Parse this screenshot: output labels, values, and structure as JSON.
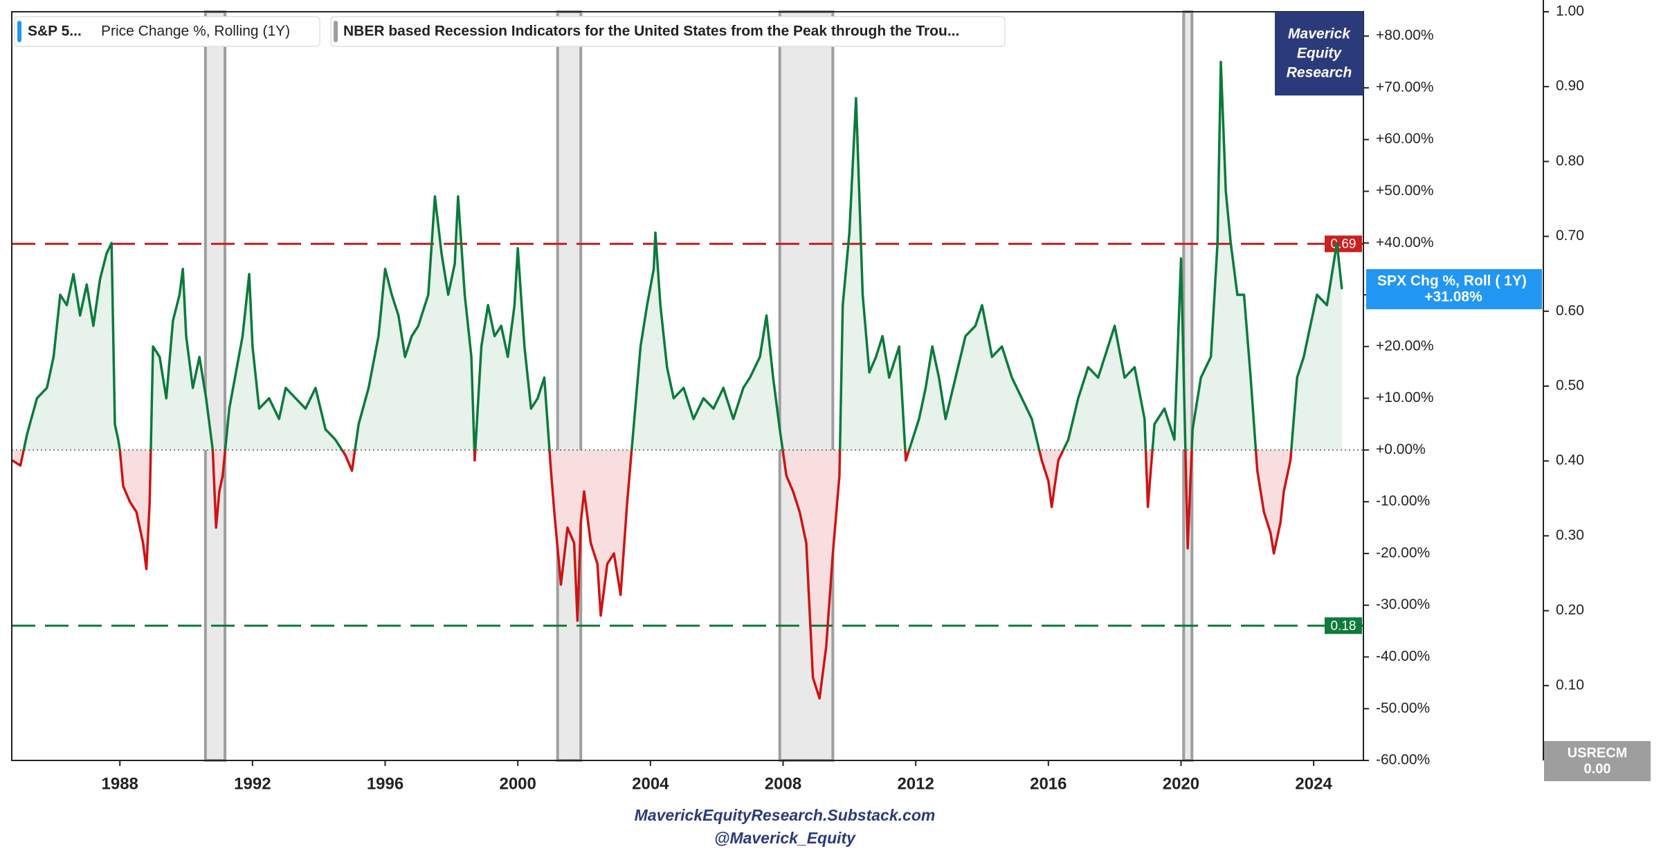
{
  "chart_data": {
    "type": "line",
    "xlim": [
      1984.74,
      2025.5
    ],
    "xticks": [
      1988,
      1992,
      1996,
      2000,
      2004,
      2008,
      2012,
      2016,
      2020,
      2024
    ],
    "ylim": [
      -60,
      84.7
    ],
    "yticks": [
      {
        "value": -60,
        "label": "-60.00%"
      },
      {
        "value": -50,
        "label": "-50.00%"
      },
      {
        "value": -40,
        "label": "-40.00%"
      },
      {
        "value": -30,
        "label": "-30.00%"
      },
      {
        "value": -20,
        "label": "-20.00%"
      },
      {
        "value": -10,
        "label": "-10.00%"
      },
      {
        "value": 0,
        "label": "+0.00%"
      },
      {
        "value": 10,
        "label": "+10.00%"
      },
      {
        "value": 20,
        "label": "+20.00%"
      },
      {
        "value": 30,
        "label": "+30.00%"
      },
      {
        "value": 40,
        "label": "+40.00%"
      },
      {
        "value": 50,
        "label": "+50.00%"
      },
      {
        "value": 60,
        "label": "+60.00%"
      },
      {
        "value": 70,
        "label": "+70.00%"
      },
      {
        "value": 80,
        "label": "+80.00%"
      }
    ],
    "y2lim": [
      0,
      1
    ],
    "y2ticks": [
      {
        "value": 0.1,
        "label": "0.10"
      },
      {
        "value": 0.2,
        "label": "0.20"
      },
      {
        "value": 0.3,
        "label": "0.30"
      },
      {
        "value": 0.4,
        "label": "0.40"
      },
      {
        "value": 0.5,
        "label": "0.50"
      },
      {
        "value": 0.6,
        "label": "0.60"
      },
      {
        "value": 0.7,
        "label": "0.70"
      },
      {
        "value": 0.8,
        "label": "0.80"
      },
      {
        "value": 0.9,
        "label": "0.90"
      },
      {
        "value": 1.0,
        "label": "1.00"
      }
    ],
    "series": [
      {
        "name": "S&P 5...",
        "description": "Price Change %, Rolling (1Y)",
        "color": "#0b7a3b",
        "negative_color": "#cc1414",
        "fill_color": "#e6f2ea",
        "negative_fill_color": "#f8dede",
        "last_label": {
          "name": "SPX Chg %, Roll ( 1Y)",
          "value_label": "+31.08%",
          "color": "#2196f3"
        },
        "x": [
          1984.75,
          1985.0,
          1985.2,
          1985.5,
          1985.8,
          1986.0,
          1986.2,
          1986.4,
          1986.6,
          1986.8,
          1987.0,
          1987.2,
          1987.4,
          1987.6,
          1987.75,
          1987.85,
          1987.95,
          1988.0,
          1988.1,
          1988.3,
          1988.5,
          1988.7,
          1988.8,
          1988.9,
          1989.0,
          1989.2,
          1989.4,
          1989.6,
          1989.8,
          1989.9,
          1990.0,
          1990.2,
          1990.4,
          1990.6,
          1990.8,
          1990.9,
          1991.0,
          1991.1,
          1991.3,
          1991.5,
          1991.7,
          1991.9,
          1992.0,
          1992.2,
          1992.5,
          1992.8,
          1993.0,
          1993.3,
          1993.6,
          1993.9,
          1994.2,
          1994.5,
          1994.8,
          1995.0,
          1995.2,
          1995.5,
          1995.8,
          1996.0,
          1996.2,
          1996.4,
          1996.6,
          1996.8,
          1997.0,
          1997.3,
          1997.5,
          1997.7,
          1997.9,
          1998.1,
          1998.2,
          1998.4,
          1998.6,
          1998.7,
          1998.9,
          1999.1,
          1999.3,
          1999.5,
          1999.7,
          1999.9,
          2000.0,
          2000.2,
          2000.4,
          2000.6,
          2000.8,
          2001.0,
          2001.1,
          2001.3,
          2001.5,
          2001.7,
          2001.8,
          2001.9,
          2002.0,
          2002.2,
          2002.4,
          2002.5,
          2002.7,
          2002.9,
          2003.1,
          2003.3,
          2003.5,
          2003.7,
          2003.9,
          2004.1,
          2004.15,
          2004.3,
          2004.5,
          2004.7,
          2005.0,
          2005.3,
          2005.6,
          2005.9,
          2006.2,
          2006.5,
          2006.8,
          2007.0,
          2007.3,
          2007.5,
          2007.7,
          2007.9,
          2008.1,
          2008.3,
          2008.5,
          2008.7,
          2008.9,
          2009.1,
          2009.3,
          2009.5,
          2009.7,
          2009.8,
          2010.0,
          2010.2,
          2010.4,
          2010.6,
          2010.8,
          2011.0,
          2011.2,
          2011.5,
          2011.7,
          2011.9,
          2012.1,
          2012.3,
          2012.5,
          2012.7,
          2012.9,
          2013.2,
          2013.5,
          2013.8,
          2014.0,
          2014.3,
          2014.6,
          2014.9,
          2015.2,
          2015.5,
          2015.8,
          2016.0,
          2016.1,
          2016.3,
          2016.6,
          2016.9,
          2017.2,
          2017.5,
          2017.8,
          2018.0,
          2018.3,
          2018.6,
          2018.9,
          2019.0,
          2019.2,
          2019.5,
          2019.8,
          2020.0,
          2020.2,
          2020.35,
          2020.6,
          2020.9,
          2021.1,
          2021.2,
          2021.35,
          2021.5,
          2021.7,
          2021.9,
          2022.1,
          2022.3,
          2022.5,
          2022.7,
          2022.8,
          2023.0,
          2023.1,
          2023.3,
          2023.5,
          2023.7,
          2023.9,
          2024.1,
          2024.4,
          2024.6,
          2024.7,
          2024.85
        ],
        "values": [
          -2,
          -3,
          3,
          10,
          12,
          18,
          30,
          28,
          34,
          26,
          32,
          24,
          33,
          38,
          40,
          5,
          2,
          0,
          -7,
          -10,
          -12,
          -18,
          -23,
          -10,
          20,
          18,
          10,
          25,
          30,
          35,
          22,
          12,
          18,
          10,
          0,
          -15,
          -8,
          -5,
          8,
          15,
          22,
          34,
          20,
          8,
          10,
          6,
          12,
          10,
          8,
          12,
          4,
          2,
          -1,
          -4,
          5,
          12,
          22,
          35,
          30,
          26,
          18,
          22,
          24,
          30,
          49,
          38,
          30,
          36,
          49,
          30,
          18,
          -2,
          20,
          28,
          22,
          24,
          18,
          28,
          39,
          20,
          8,
          10,
          14,
          -4,
          -12,
          -26,
          -15,
          -18,
          -33,
          -14,
          -8,
          -18,
          -22,
          -32,
          -22,
          -20,
          -28,
          -10,
          5,
          20,
          28,
          35,
          42,
          28,
          16,
          10,
          12,
          6,
          10,
          8,
          12,
          6,
          12,
          14,
          18,
          26,
          14,
          4,
          -5,
          -8,
          -12,
          -18,
          -44,
          -48,
          -38,
          -20,
          -5,
          28,
          42,
          68,
          30,
          15,
          18,
          22,
          14,
          20,
          -2,
          2,
          6,
          12,
          20,
          14,
          6,
          14,
          22,
          24,
          28,
          18,
          20,
          14,
          10,
          6,
          -2,
          -6,
          -11,
          -2,
          2,
          10,
          16,
          14,
          20,
          24,
          14,
          16,
          6,
          -11,
          5,
          8,
          2,
          37,
          -19,
          4,
          14,
          18,
          40,
          75,
          50,
          40,
          30,
          30,
          14,
          -4,
          -12,
          -16,
          -20,
          -14,
          -8,
          -2,
          14,
          18,
          24,
          30,
          28,
          36,
          40,
          31.08
        ]
      },
      {
        "name": "NBER based Recession Indicators for the United States from the Peak through the Trou...",
        "color": "#9e9e9e",
        "fill_color": "#e9e9e9",
        "axis": "y2",
        "ranges": [
          [
            1990.58,
            1991.17
          ],
          [
            2001.2,
            2001.9
          ],
          [
            2007.9,
            2009.5
          ],
          [
            2020.08,
            2020.33
          ]
        ],
        "values": [
          1,
          1,
          1,
          1
        ],
        "last_label": {
          "name": "USRECM",
          "value": 0,
          "value_label": "0.00"
        }
      }
    ],
    "hlines": [
      {
        "value": 0.69,
        "label": "0.69",
        "axis": "y2",
        "color": "#cc1f1f"
      },
      {
        "value": 0.18,
        "label": "0.18",
        "axis": "y2",
        "color": "#0f7a3a"
      }
    ],
    "watermark": [
      "Maverick",
      "Equity",
      "Research"
    ],
    "footer": [
      "MaverickEquityResearch.Substack.com",
      "@Maverick_Equity"
    ]
  }
}
